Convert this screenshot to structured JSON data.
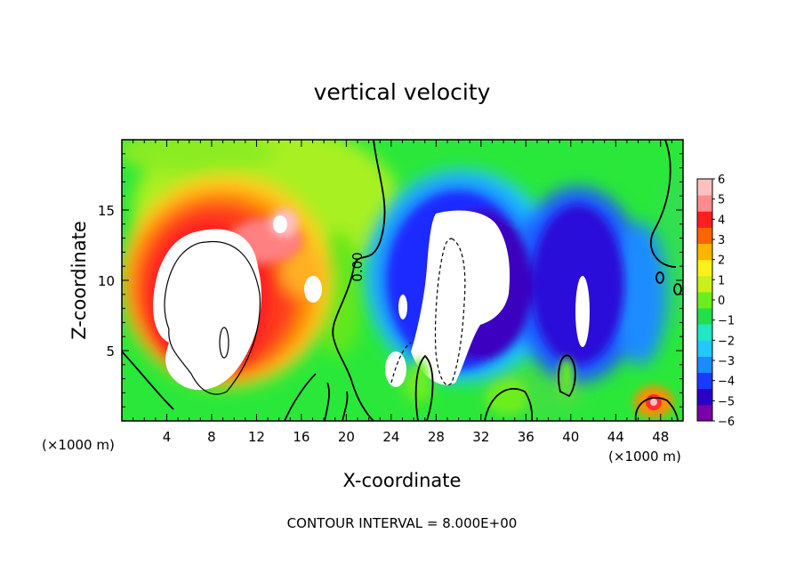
{
  "chart_data": {
    "type": "heatmap",
    "title": "vertical velocity",
    "xlabel": "X-coordinate",
    "ylabel": "Z-coordinate",
    "x_unit_left": "(×1000 m)",
    "x_unit_right": "(×1000 m)",
    "x_ticks": [
      4,
      8,
      12,
      16,
      20,
      24,
      28,
      32,
      36,
      40,
      44,
      48
    ],
    "y_ticks": [
      5,
      10,
      15
    ],
    "xlim": [
      0,
      50
    ],
    "ylim": [
      0,
      20
    ],
    "colorbar": {
      "ticks": [
        "6",
        "5",
        "4",
        "3",
        "2",
        "1",
        "0",
        "-1",
        "-2",
        "-3",
        "-4",
        "-5",
        "-6"
      ],
      "range": [
        -6,
        6
      ],
      "colors": [
        "#7a00a8",
        "#2a00c8",
        "#1a3aff",
        "#1a8cff",
        "#22c8ff",
        "#22e6c8",
        "#22e04a",
        "#6aef1a",
        "#c8f01a",
        "#fff01a",
        "#ffb400",
        "#ff6400",
        "#ff1e1e",
        "#ff8c8c",
        "#ffc0c0"
      ]
    },
    "contour_label": "0.00",
    "footer": "CONTOUR INTERVAL = 8.000E+00",
    "features": [
      {
        "kind": "updraft",
        "x": 8,
        "z": 10,
        "value": 6
      },
      {
        "kind": "downdraft",
        "x": 29,
        "z": 10,
        "value": -6
      },
      {
        "kind": "downdraft",
        "x": 42,
        "z": 9,
        "value": -5
      },
      {
        "kind": "updraft",
        "x": 47,
        "z": 1.2,
        "value": 5
      }
    ]
  }
}
